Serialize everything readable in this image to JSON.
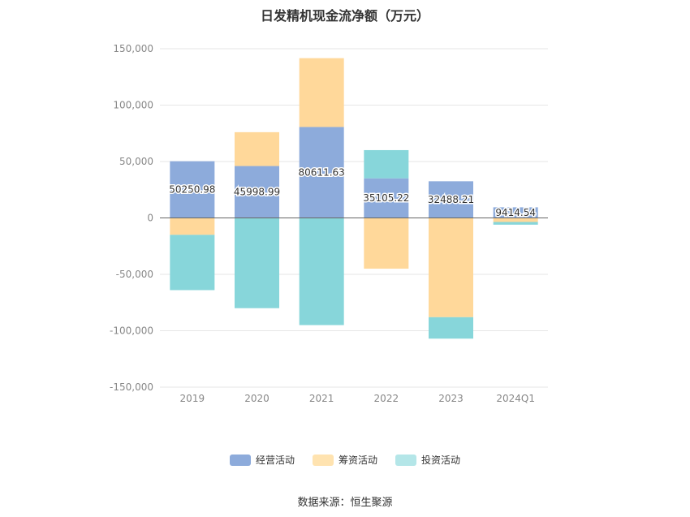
{
  "chart_data": {
    "type": "bar",
    "stacked": true,
    "title": "日发精机现金流净额（万元）",
    "categories": [
      "2019",
      "2020",
      "2021",
      "2022",
      "2023",
      "2024Q1"
    ],
    "ylim": [
      -150000,
      150000
    ],
    "yticks": [
      150000,
      100000,
      50000,
      0,
      -50000,
      -100000,
      -150000
    ],
    "ytick_labels": [
      "150,000",
      "100,000",
      "50,000",
      "0",
      "-50,000",
      "-100,000",
      "-150,000"
    ],
    "grid": true,
    "legend_position": "bottom",
    "series": [
      {
        "name": "经营活动",
        "color": "#8dabdb",
        "values": [
          50250.98,
          45998.99,
          80611.63,
          35105.22,
          32488.21,
          9414.54
        ],
        "labels": [
          "50250.98",
          "45998.99",
          "80611.63",
          "35105.22",
          "32488.21",
          "9414.54"
        ]
      },
      {
        "name": "筹资活动",
        "color": "#ffd89a",
        "values": [
          -15000,
          30000,
          61000,
          -45000,
          -88000,
          -3600
        ]
      },
      {
        "name": "投资活动",
        "color": "#87d6da",
        "values": [
          -49000,
          -80000,
          -95000,
          25000,
          -19000,
          -2400
        ]
      }
    ]
  },
  "legend": {
    "items": [
      {
        "label": "经营活动",
        "color": "#8dabdb"
      },
      {
        "label": "筹资活动",
        "color": "#ffe3b0"
      },
      {
        "label": "投资活动",
        "color": "#b4e6e8"
      }
    ]
  },
  "source": "数据来源：恒生聚源"
}
